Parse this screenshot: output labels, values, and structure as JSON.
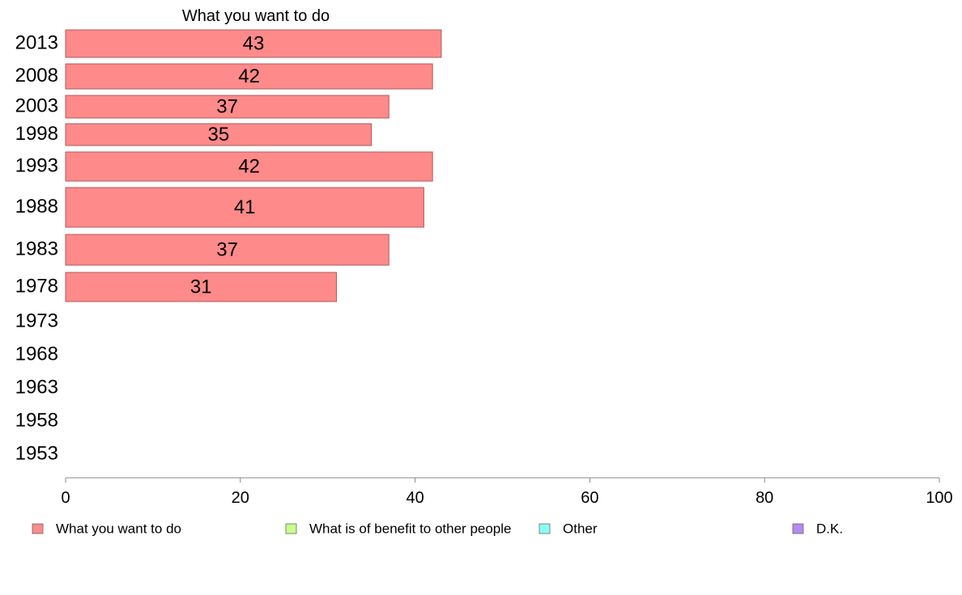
{
  "chart_data": {
    "type": "bar",
    "orientation": "horizontal",
    "title": "What you want to do",
    "categories": [
      "2013",
      "2008",
      "2003",
      "1998",
      "1993",
      "1988",
      "1983",
      "1978",
      "1973",
      "1968",
      "1963",
      "1958",
      "1953"
    ],
    "series": [
      {
        "name": "What you want to do",
        "color": "#ff8a8a",
        "values": [
          43,
          42,
          37,
          35,
          42,
          41,
          37,
          31,
          null,
          null,
          null,
          null,
          null
        ]
      }
    ],
    "xlim": [
      0,
      100
    ],
    "xticks": [
      "0",
      "20",
      "40",
      "60",
      "80",
      "100"
    ],
    "legend": {
      "position": "bottom",
      "items": [
        {
          "label": "What you want to do",
          "color": "#ff8a8a"
        },
        {
          "label": "What is of benefit to other people",
          "color": "#c6ff8a"
        },
        {
          "label": "Other",
          "color": "#8afff2"
        },
        {
          "label": "D.K.",
          "color": "#b58af2"
        }
      ]
    },
    "grid": false
  }
}
